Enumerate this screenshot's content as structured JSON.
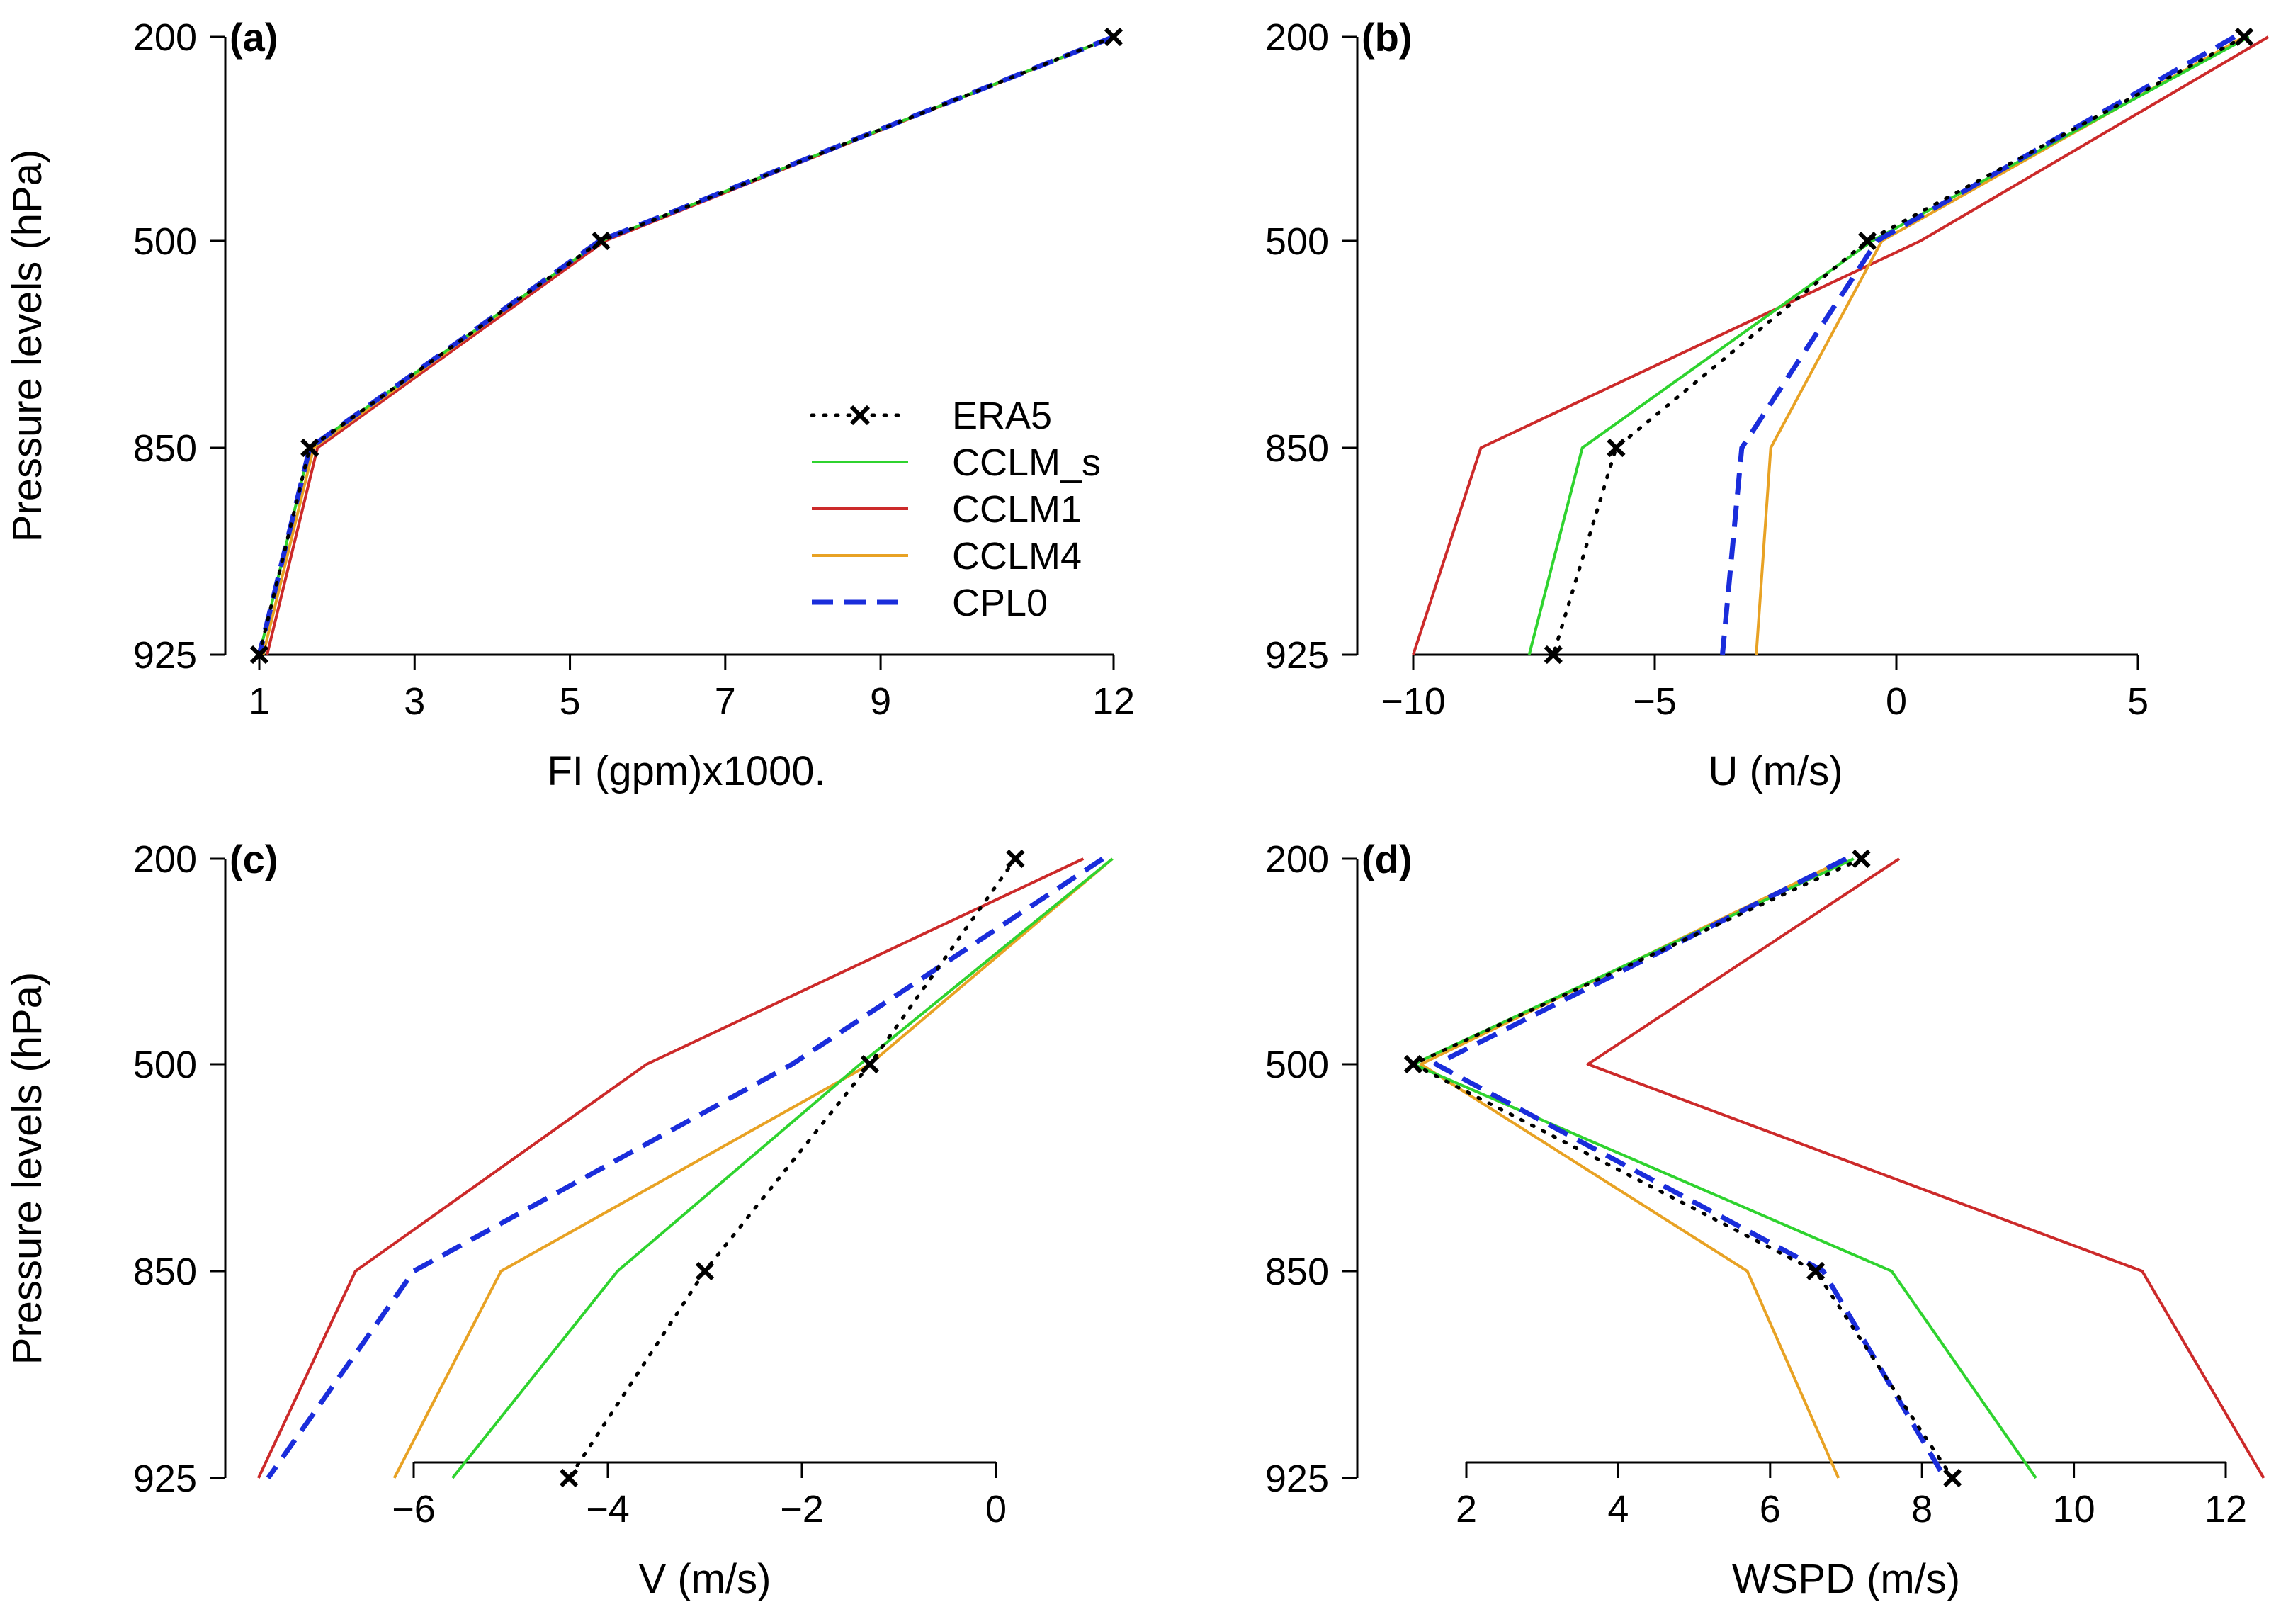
{
  "chart_data": [
    {
      "type": "line",
      "panel_label": "(a)",
      "xlabel": "FI (gpm)x1000.",
      "ylabel": "Pressure levels (hPa)",
      "y_levels": [
        "200",
        "500",
        "850",
        "925"
      ],
      "xlim": [
        1,
        12
      ],
      "x_ticks": [
        1,
        3,
        5,
        7,
        9,
        12
      ],
      "x_tick_labels": [
        "1",
        "3",
        "5",
        "7",
        "9",
        "12"
      ],
      "series": [
        {
          "name": "ERA5",
          "values": [
            12.0,
            5.4,
            1.65,
            1.0
          ]
        },
        {
          "name": "CCLM_s",
          "values": [
            12.0,
            5.4,
            1.65,
            1.0
          ]
        },
        {
          "name": "CCLM1",
          "values": [
            12.0,
            5.45,
            1.75,
            1.1
          ]
        },
        {
          "name": "CCLM4",
          "values": [
            12.0,
            5.4,
            1.7,
            1.05
          ]
        },
        {
          "name": "CPL0",
          "values": [
            12.0,
            5.38,
            1.65,
            1.0
          ]
        }
      ]
    },
    {
      "type": "line",
      "panel_label": "(b)",
      "xlabel": "U (m/s)",
      "ylabel": "",
      "y_levels": [
        "200",
        "500",
        "850",
        "925"
      ],
      "xlim": [
        -10,
        5
      ],
      "x_ticks": [
        -10,
        -5,
        0,
        5
      ],
      "x_tick_labels": [
        "−10",
        "−5",
        "0",
        "5"
      ],
      "series": [
        {
          "name": "ERA5",
          "values": [
            7.2,
            -0.6,
            -5.8,
            -7.1
          ]
        },
        {
          "name": "CCLM_s",
          "values": [
            7.3,
            -0.5,
            -6.5,
            -7.6
          ]
        },
        {
          "name": "CCLM1",
          "values": [
            7.7,
            0.5,
            -8.6,
            -10.0
          ]
        },
        {
          "name": "CCLM4",
          "values": [
            7.2,
            -0.3,
            -2.6,
            -2.9
          ]
        },
        {
          "name": "CPL0",
          "values": [
            7.0,
            -0.4,
            -3.2,
            -3.6
          ]
        }
      ]
    },
    {
      "type": "line",
      "panel_label": "(c)",
      "xlabel": "V (m/s)",
      "ylabel": "Pressure levels (hPa)",
      "y_levels": [
        "200",
        "500",
        "850",
        "925"
      ],
      "xlim": [
        -6,
        0
      ],
      "x_ticks": [
        -6,
        -4,
        -2,
        0
      ],
      "x_tick_labels": [
        "−6",
        "−4",
        "−2",
        "0"
      ],
      "series": [
        {
          "name": "ERA5",
          "values": [
            0.2,
            -1.3,
            -3.0,
            -4.4
          ]
        },
        {
          "name": "CCLM_s",
          "values": [
            1.2,
            -1.4,
            -3.9,
            -5.6
          ]
        },
        {
          "name": "CCLM1",
          "values": [
            0.9,
            -3.6,
            -6.6,
            -7.6
          ]
        },
        {
          "name": "CCLM4",
          "values": [
            1.2,
            -1.3,
            -5.1,
            -6.2
          ]
        },
        {
          "name": "CPL0",
          "values": [
            1.1,
            -2.1,
            -6.0,
            -7.5
          ]
        }
      ]
    },
    {
      "type": "line",
      "panel_label": "(d)",
      "xlabel": "WSPD (m/s)",
      "ylabel": "",
      "y_levels": [
        "200",
        "500",
        "850",
        "925"
      ],
      "xlim": [
        2,
        12
      ],
      "x_ticks": [
        2,
        4,
        6,
        8,
        10,
        12
      ],
      "x_tick_labels": [
        "2",
        "4",
        "6",
        "8",
        "10",
        "12"
      ],
      "series": [
        {
          "name": "ERA5",
          "values": [
            7.2,
            1.3,
            6.6,
            8.4
          ]
        },
        {
          "name": "CCLM_s",
          "values": [
            7.1,
            1.3,
            7.6,
            9.5
          ]
        },
        {
          "name": "CCLM1",
          "values": [
            7.7,
            3.6,
            10.9,
            12.5
          ]
        },
        {
          "name": "CCLM4",
          "values": [
            7.0,
            1.4,
            5.7,
            6.9
          ]
        },
        {
          "name": "CPL0",
          "values": [
            7.0,
            1.6,
            6.7,
            8.3
          ]
        }
      ]
    }
  ],
  "legend": {
    "placement": "lower-right of panel (a)",
    "entries": [
      {
        "name": "ERA5",
        "color": "#000000",
        "style": "dotted",
        "marker": "x"
      },
      {
        "name": "CCLM_s",
        "color": "#2fd32f",
        "style": "solid",
        "marker": ""
      },
      {
        "name": "CCLM1",
        "color": "#cc2a2a",
        "style": "solid",
        "marker": ""
      },
      {
        "name": "CCLM4",
        "color": "#e8a224",
        "style": "solid",
        "marker": ""
      },
      {
        "name": "CPL0",
        "color": "#1a2ddb",
        "style": "dashed",
        "marker": ""
      }
    ]
  }
}
